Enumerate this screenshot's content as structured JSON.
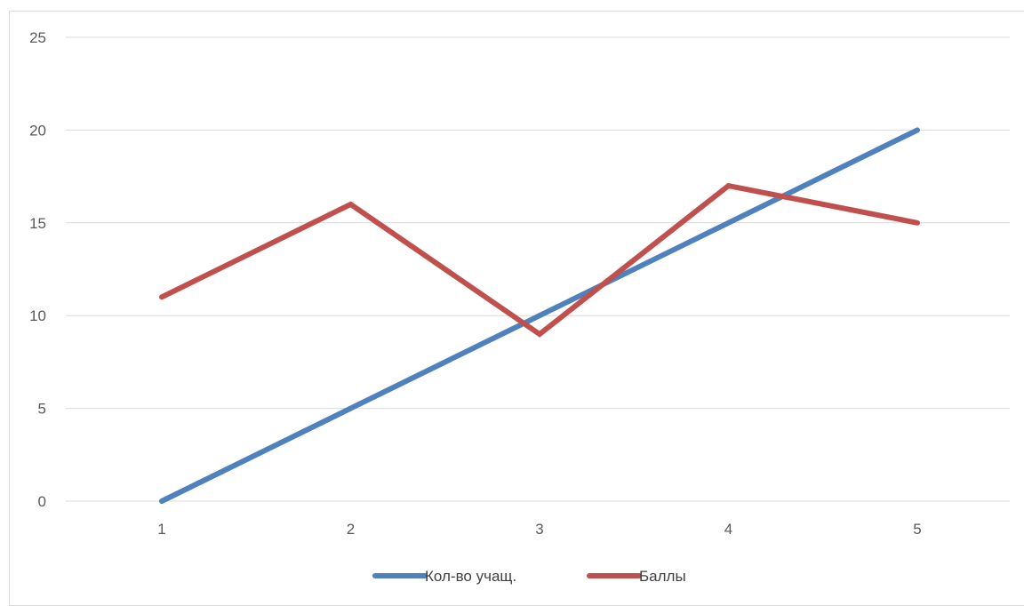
{
  "chart_data": {
    "type": "line",
    "categories": [
      "1",
      "2",
      "3",
      "4",
      "5"
    ],
    "series": [
      {
        "name": "Кол-во учащ.",
        "values": [
          0,
          5,
          10,
          15,
          20
        ],
        "color": "#4f81bd"
      },
      {
        "name": "Баллы",
        "values": [
          11,
          16,
          9,
          17,
          15
        ],
        "color": "#c0504d"
      }
    ],
    "y_ticks": [
      "0",
      "5",
      "10",
      "15",
      "20",
      "25"
    ],
    "ylim": [
      0,
      25
    ],
    "title": "",
    "xlabel": "",
    "ylabel": "",
    "grid": true,
    "legend_position": "bottom"
  }
}
